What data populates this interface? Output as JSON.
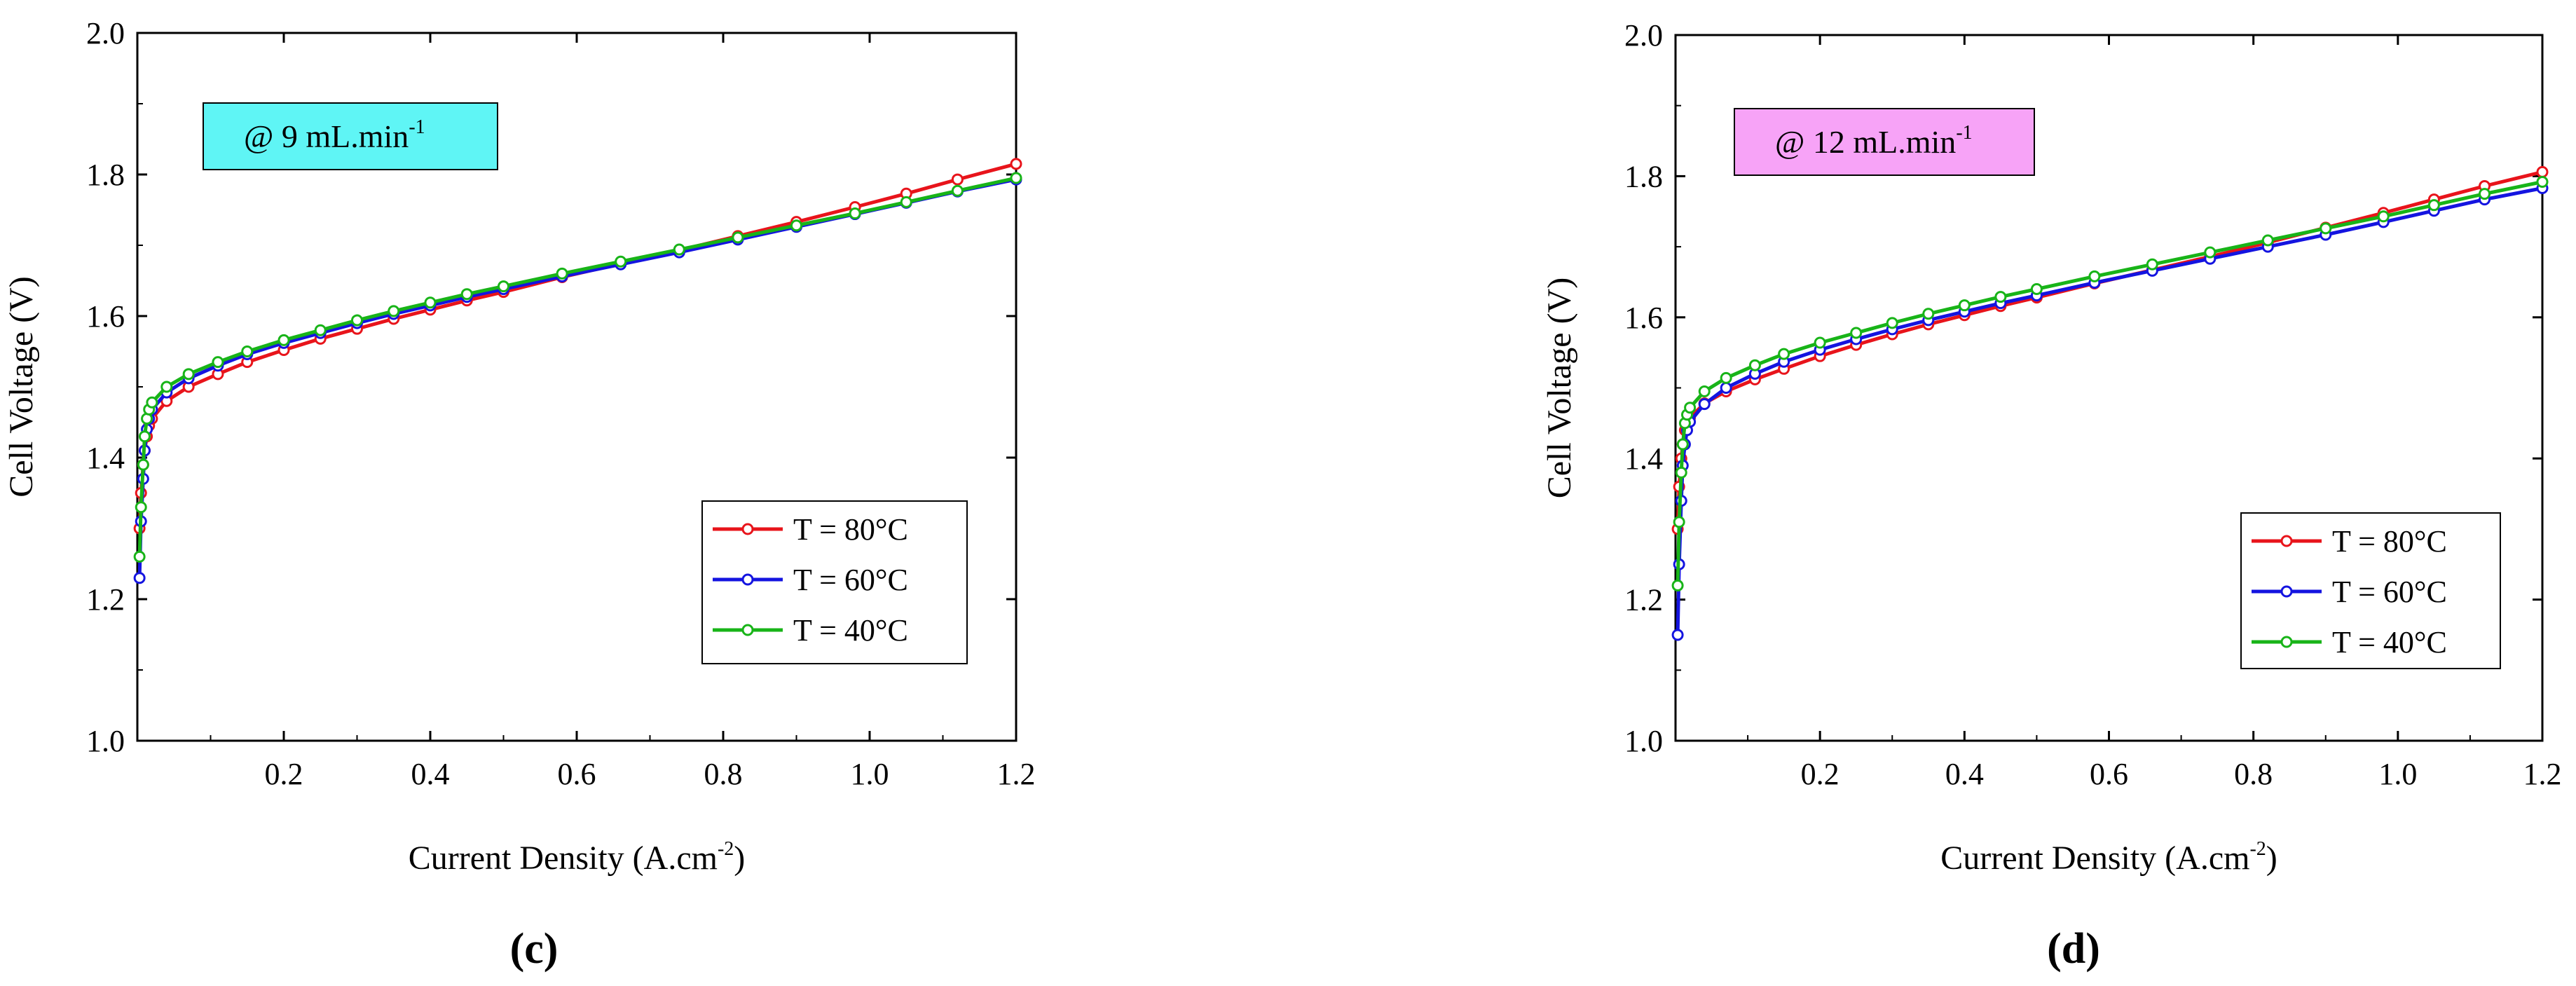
{
  "chart_data": [
    {
      "type": "line",
      "panel_label": "(c)",
      "annotation": {
        "text": "@ 9 mL.min",
        "superscript": "-1",
        "color": "#5ff5f5"
      },
      "xlabel": {
        "text": "Current Density (A.cm",
        "superscript": "-2",
        "suffix": ")"
      },
      "ylabel": "Cell Voltage (V)",
      "xlim": [
        0.0,
        1.2
      ],
      "ylim": [
        1.0,
        2.0
      ],
      "xticks": [
        0.2,
        0.4,
        0.6,
        0.8,
        1.0,
        1.2
      ],
      "xtick_labels": [
        "0.2",
        "0.4",
        "0.6",
        "0.8",
        "1.0",
        "1.2"
      ],
      "yticks": [
        1.0,
        1.2,
        1.4,
        1.6,
        1.8,
        2.0
      ],
      "ytick_labels": [
        "1.0",
        "1.2",
        "1.4",
        "1.6",
        "1.8",
        "2.0"
      ],
      "legend_position": "bottom-right",
      "series": [
        {
          "name": "T = 80°C",
          "color": "#e8141b",
          "x": [
            0.003,
            0.005,
            0.008,
            0.01,
            0.013,
            0.016,
            0.02,
            0.04,
            0.07,
            0.11,
            0.15,
            0.2,
            0.25,
            0.3,
            0.35,
            0.4,
            0.45,
            0.5,
            0.58,
            0.66,
            0.74,
            0.82,
            0.9,
            0.98,
            1.05,
            1.12,
            1.2
          ],
          "y": [
            1.3,
            1.35,
            1.39,
            1.41,
            1.43,
            1.445,
            1.455,
            1.48,
            1.5,
            1.518,
            1.535,
            1.552,
            1.568,
            1.582,
            1.596,
            1.609,
            1.622,
            1.634,
            1.655,
            1.674,
            1.693,
            1.713,
            1.733,
            1.754,
            1.773,
            1.793,
            1.815
          ]
        },
        {
          "name": "T = 60°C",
          "color": "#1414e0",
          "x": [
            0.003,
            0.005,
            0.008,
            0.01,
            0.013,
            0.016,
            0.02,
            0.04,
            0.07,
            0.11,
            0.15,
            0.2,
            0.25,
            0.3,
            0.35,
            0.4,
            0.45,
            0.5,
            0.58,
            0.66,
            0.74,
            0.82,
            0.9,
            0.98,
            1.05,
            1.12,
            1.2
          ],
          "y": [
            1.23,
            1.31,
            1.37,
            1.41,
            1.44,
            1.455,
            1.468,
            1.492,
            1.512,
            1.53,
            1.546,
            1.562,
            1.576,
            1.59,
            1.603,
            1.615,
            1.627,
            1.638,
            1.656,
            1.673,
            1.69,
            1.708,
            1.726,
            1.744,
            1.76,
            1.776,
            1.793
          ]
        },
        {
          "name": "T = 40°C",
          "color": "#18b418",
          "x": [
            0.003,
            0.005,
            0.008,
            0.01,
            0.013,
            0.016,
            0.02,
            0.04,
            0.07,
            0.11,
            0.15,
            0.2,
            0.25,
            0.3,
            0.35,
            0.4,
            0.45,
            0.5,
            0.58,
            0.66,
            0.74,
            0.82,
            0.9,
            0.98,
            1.05,
            1.12,
            1.2
          ],
          "y": [
            1.26,
            1.33,
            1.39,
            1.43,
            1.455,
            1.468,
            1.478,
            1.5,
            1.518,
            1.535,
            1.55,
            1.566,
            1.58,
            1.594,
            1.607,
            1.619,
            1.631,
            1.642,
            1.66,
            1.677,
            1.694,
            1.711,
            1.728,
            1.745,
            1.761,
            1.777,
            1.795
          ]
        }
      ]
    },
    {
      "type": "line",
      "panel_label": "(d)",
      "annotation": {
        "text": "@ 12 mL.min",
        "superscript": "-1",
        "color": "#f7a3f7"
      },
      "xlabel": {
        "text": "Current Density (A.cm",
        "superscript": "-2",
        "suffix": ")"
      },
      "ylabel": "Cell Voltage (V)",
      "xlim": [
        0.0,
        1.2
      ],
      "ylim": [
        1.0,
        2.0
      ],
      "xticks": [
        0.2,
        0.4,
        0.6,
        0.8,
        1.0,
        1.2
      ],
      "xtick_labels": [
        "0.2",
        "0.4",
        "0.6",
        "0.8",
        "1.0",
        "1.2"
      ],
      "yticks": [
        1.0,
        1.2,
        1.4,
        1.6,
        1.8,
        2.0
      ],
      "ytick_labels": [
        "1.0",
        "1.2",
        "1.4",
        "1.6",
        "1.8",
        "2.0"
      ],
      "legend_position": "bottom-right",
      "series": [
        {
          "name": "T = 80°C",
          "color": "#e8141b",
          "x": [
            0.003,
            0.005,
            0.008,
            0.01,
            0.013,
            0.016,
            0.02,
            0.04,
            0.07,
            0.11,
            0.15,
            0.2,
            0.25,
            0.3,
            0.35,
            0.4,
            0.45,
            0.5,
            0.58,
            0.66,
            0.74,
            0.82,
            0.9,
            0.98,
            1.05,
            1.12,
            1.2
          ],
          "y": [
            1.3,
            1.36,
            1.4,
            1.42,
            1.44,
            1.45,
            1.458,
            1.478,
            1.495,
            1.512,
            1.527,
            1.545,
            1.561,
            1.576,
            1.59,
            1.603,
            1.616,
            1.628,
            1.648,
            1.667,
            1.686,
            1.706,
            1.727,
            1.748,
            1.767,
            1.786,
            1.806
          ]
        },
        {
          "name": "T = 60°C",
          "color": "#1414e0",
          "x": [
            0.003,
            0.005,
            0.008,
            0.01,
            0.013,
            0.016,
            0.02,
            0.04,
            0.07,
            0.11,
            0.15,
            0.2,
            0.25,
            0.3,
            0.35,
            0.4,
            0.45,
            0.5,
            0.58,
            0.66,
            0.74,
            0.82,
            0.9,
            0.98,
            1.05,
            1.12,
            1.2
          ],
          "y": [
            1.15,
            1.25,
            1.34,
            1.39,
            1.42,
            1.44,
            1.452,
            1.477,
            1.5,
            1.52,
            1.537,
            1.554,
            1.569,
            1.583,
            1.596,
            1.608,
            1.62,
            1.631,
            1.649,
            1.666,
            1.683,
            1.7,
            1.717,
            1.735,
            1.751,
            1.767,
            1.783
          ]
        },
        {
          "name": "T = 40°C",
          "color": "#18b418",
          "x": [
            0.003,
            0.005,
            0.008,
            0.01,
            0.013,
            0.016,
            0.02,
            0.04,
            0.07,
            0.11,
            0.15,
            0.2,
            0.25,
            0.3,
            0.35,
            0.4,
            0.45,
            0.5,
            0.58,
            0.66,
            0.74,
            0.82,
            0.9,
            0.98,
            1.05,
            1.12,
            1.2
          ],
          "y": [
            1.22,
            1.31,
            1.38,
            1.42,
            1.45,
            1.462,
            1.472,
            1.495,
            1.514,
            1.532,
            1.548,
            1.564,
            1.578,
            1.592,
            1.605,
            1.617,
            1.629,
            1.64,
            1.658,
            1.675,
            1.692,
            1.709,
            1.726,
            1.743,
            1.759,
            1.775,
            1.792
          ]
        }
      ]
    }
  ]
}
